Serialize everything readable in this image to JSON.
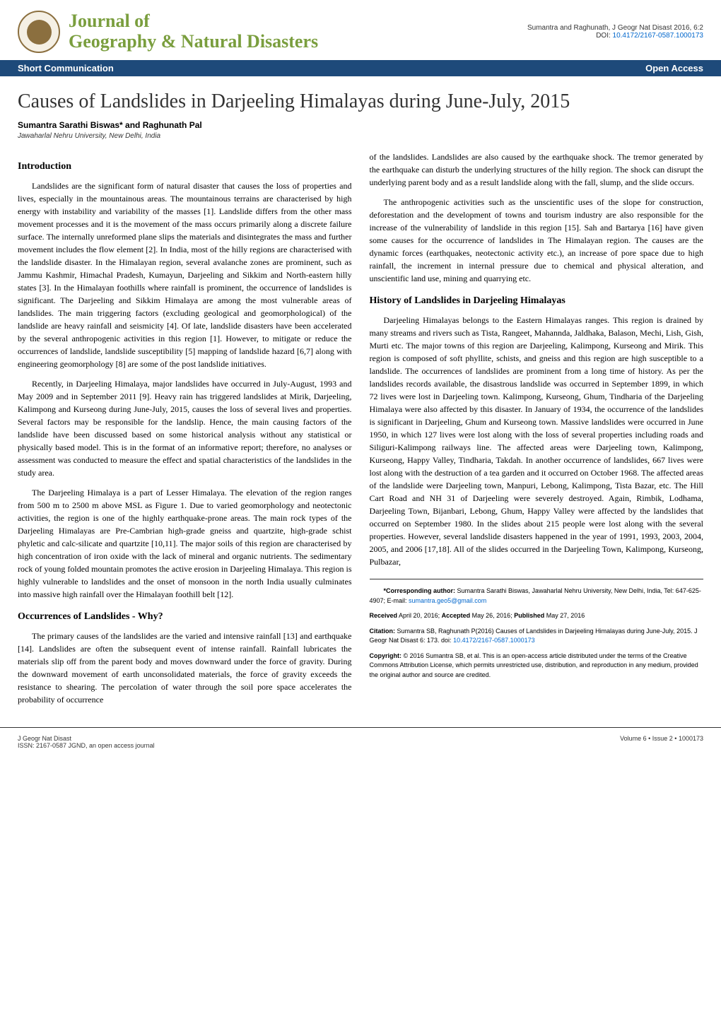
{
  "header": {
    "journal_line1": "Journal of",
    "journal_line2": "Geography & Natural Disasters",
    "issn": "ISSN: 2167-0587",
    "citation_short": "Sumantra and Raghunath, J Geogr Nat Disast 2016, 6:2",
    "doi_label": "DOI:",
    "doi": "10.4172/2167-0587.1000173"
  },
  "banner": {
    "left": "Short Communication",
    "right": "Open Access"
  },
  "article": {
    "title": "Causes of Landslides in Darjeeling Himalayas during June-July, 2015",
    "authors": "Sumantra Sarathi Biswas* and Raghunath Pal",
    "affiliation": "Jawaharlal Nehru University, New Delhi, India"
  },
  "sections": {
    "introduction": {
      "title": "Introduction",
      "p1": "Landslides are the significant form of natural disaster that causes the loss of properties and lives, especially in the mountainous areas. The mountainous terrains are characterised by high energy with instability and variability of the masses [1]. Landslide differs from the other mass movement processes and it is the movement of the mass occurs primarily along a discrete failure surface. The internally unreformed plane slips the materials and disintegrates the mass and further movement includes the flow element [2]. In India, most of the hilly regions are characterised with the landslide disaster. In the Himalayan region, several avalanche zones are prominent, such as Jammu Kashmir, Himachal Pradesh, Kumayun, Darjeeling and Sikkim and North-eastern hilly states [3]. In the Himalayan foothills where rainfall is prominent, the occurrence of landslides is significant. The Darjeeling and Sikkim Himalaya are among the most vulnerable areas of landslides. The main triggering factors (excluding geological and geomorphological) of the landslide are heavy rainfall and seismicity [4]. Of late, landslide disasters have been accelerated by the several anthropogenic activities in this region [1]. However, to mitigate or reduce the occurrences of landslide, landslide susceptibility [5] mapping of landslide hazard [6,7] along with engineering geomorphology [8] are some of the post landslide initiatives.",
      "p2": "Recently, in Darjeeling Himalaya, major landslides have occurred in July-August, 1993 and May 2009 and in September 2011 [9]. Heavy rain has triggered landslides at Mirik, Darjeeling, Kalimpong and Kurseong during June-July, 2015, causes the loss of several lives and properties. Several factors may be responsible for the landslip. Hence, the main causing factors of the landslide have been discussed based on some historical analysis without any statistical or physically based model. This is in the format of an informative report; therefore, no analyses or assessment was conducted to measure the effect and spatial characteristics of the landslides in the study area.",
      "p3": "The Darjeeling Himalaya is a part of Lesser Himalaya. The elevation of the region ranges from 500 m to 2500 m above MSL as Figure 1. Due to varied geomorphology and neotectonic activities, the region is one of the highly earthquake-prone areas. The main rock types of the Darjeeling Himalayas are Pre-Cambrian high-grade gneiss and quartzite, high-grade schist phyletic and calc-silicate and quartzite [10,11]. The major soils of this region are characterised by high concentration of iron oxide with the lack of mineral and organic nutrients. The sedimentary rock of young folded mountain promotes the active erosion in Darjeeling Himalaya. This region is highly vulnerable to landslides and the onset of monsoon in the north India usually culminates into massive high rainfall over the Himalayan foothill belt [12]."
    },
    "occurrences": {
      "title": "Occurrences of Landslides - Why?",
      "p1": "The primary causes of the landslides are the varied and intensive rainfall [13] and earthquake [14]. Landslides are often the subsequent event of intense rainfall. Rainfall lubricates the materials slip off from the parent body and moves downward under the force of gravity. During the downward movement of earth unconsolidated materials, the force of gravity exceeds the resistance to shearing. The percolation of water through the soil pore space accelerates the probability of occurrence",
      "p2": "of the landslides. Landslides are also caused by the earthquake shock. The tremor generated by the earthquake can disturb the underlying structures of the hilly region. The shock can disrupt the underlying parent body and as a result landslide along with the fall, slump, and the slide occurs.",
      "p3": "The anthropogenic activities such as the unscientific uses of the slope for construction, deforestation and the development of towns and tourism industry are also responsible for the increase of the vulnerability of landslide in this region [15]. Sah and Bartarya [16] have given some causes for the occurrence of landslides in The Himalayan region. The causes are the dynamic forces (earthquakes, neotectonic activity etc.), an increase of pore space due to high rainfall, the increment in internal pressure due to chemical and physical alteration, and unscientific land use, mining and quarrying etc."
    },
    "history": {
      "title": "History of Landslides in Darjeeling Himalayas",
      "p1": "Darjeeling Himalayas belongs to the Eastern Himalayas ranges. This region is drained by many streams and rivers such as Tista, Rangeet, Mahannda, Jaldhaka, Balason, Mechi, Lish, Gish, Murti etc. The major towns of this region are Darjeeling, Kalimpong, Kurseong and Mirik. This region is composed of soft phyllite, schists, and gneiss and this region are high susceptible to a landslide. The occurrences of landslides are prominent from a long time of history. As per the landslides records available, the disastrous landslide was occurred in September 1899, in which 72 lives were lost in Darjeeling town. Kalimpong, Kurseong, Ghum, Tindharia of the Darjeeling Himalaya were also affected by this disaster. In January of 1934, the occurrence of the landslides is significant in Darjeeling, Ghum and Kurseong town. Massive landslides were occurred in June 1950, in which 127 lives were lost along with the loss of several properties including roads and Siliguri-Kalimpong railways line. The affected areas were Darjeeling town, Kalimpong, Kurseong, Happy Valley, Tindharia, Takdah. In another occurrence of landslides, 667 lives were lost along with the destruction of a tea garden and it occurred on October 1968. The affected areas of the landslide were Darjeeling town, Manpuri, Lebong, Kalimpong, Tista Bazar, etc. The Hill Cart Road and NH 31 of Darjeeling were severely destroyed. Again, Rimbik, Lodhama, Darjeeling Town, Bijanbari, Lebong, Ghum, Happy Valley were affected by the landslides that occurred on September 1980. In the slides about 215 people were lost along with the several properties. However, several landslide disasters happened in the year of 1991, 1993, 2003, 2004, 2005, and 2006 [17,18]. All of the slides occurred in the Darjeeling Town, Kalimpong, Kurseong, Pulbazar,"
    }
  },
  "infobox": {
    "corresponding_label": "*Corresponding author:",
    "corresponding": "Sumantra Sarathi Biswas, Jawaharlal Nehru University, New Delhi, India, Tel: 647-625-4907; E-mail:",
    "email": "sumantra.geo5@gmail.com",
    "received_label": "Received",
    "received": "April 20, 2016;",
    "accepted_label": "Accepted",
    "accepted": "May 26, 2016;",
    "published_label": "Published",
    "published": "May 27, 2016",
    "citation_label": "Citation:",
    "citation": "Sumantra SB, Raghunath P(2016) Causes of Landslides in Darjeeling Himalayas during June-July, 2015. J Geogr Nat Disast 6: 173. doi:",
    "citation_doi": "10.4172/2167-0587.1000173",
    "copyright_label": "Copyright:",
    "copyright": "© 2016 Sumantra SB, et al. This is an open-access article distributed under the terms of the Creative Commons Attribution License, which permits unrestricted use, distribution, and reproduction in any medium, provided the original author and source are credited."
  },
  "footer": {
    "left_line1": "J Geogr Nat Disast",
    "left_line2": "ISSN: 2167-0587 JGND, an open access journal",
    "right": "Volume 6 • Issue 2 • 1000173"
  },
  "colors": {
    "banner_bg": "#1e4a7a",
    "banner_text": "#ffffff",
    "journal_title": "#7a9e3e",
    "link": "#0066cc",
    "text": "#000000",
    "border": "#333333"
  }
}
